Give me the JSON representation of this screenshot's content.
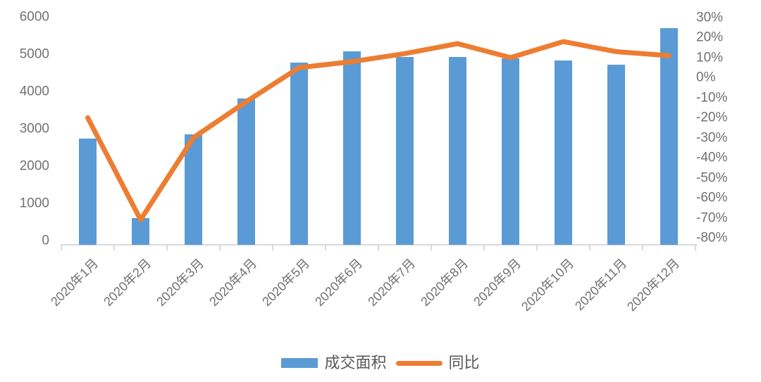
{
  "chart_data": {
    "type": "combo",
    "title": "",
    "categories": [
      "2020年1月",
      "2020年2月",
      "2020年3月",
      "2020年4月",
      "2020年5月",
      "2020年6月",
      "2020年7月",
      "2020年8月",
      "2020年9月",
      "2020年10月",
      "2020年11月",
      "2020年12月"
    ],
    "series": [
      {
        "name": "成交面积",
        "type": "bar",
        "axis": "left",
        "color": "#5B9BD5",
        "values": [
          2800,
          700,
          2900,
          3850,
          4800,
          5100,
          4950,
          4950,
          4900,
          4850,
          4750,
          5700
        ]
      },
      {
        "name": "同比",
        "type": "line",
        "axis": "right",
        "color": "#ED7D31",
        "values": [
          -20,
          -71,
          -30,
          -12,
          5,
          8,
          12,
          17,
          10,
          18,
          13,
          11
        ]
      }
    ],
    "left_axis": {
      "min": 0,
      "max": 6000,
      "step": 1000,
      "tick_labels": [
        "6000",
        "5000",
        "4000",
        "3000",
        "2000",
        "1000",
        "0"
      ]
    },
    "right_axis": {
      "min": -80,
      "max": 30,
      "step": 10,
      "tick_labels": [
        "30%",
        "20%",
        "10%",
        "0%",
        "-10%",
        "-20%",
        "-30%",
        "-40%",
        "-50%",
        "-60%",
        "-70%",
        "-80%"
      ]
    },
    "legend": {
      "position": "bottom",
      "entries": [
        {
          "label": "成交面积",
          "swatch": "bar",
          "color": "#5B9BD5"
        },
        {
          "label": "同比",
          "swatch": "line",
          "color": "#ED7D31"
        }
      ]
    },
    "grid": false
  },
  "style": {
    "background": "#FFFFFF",
    "axis_text_color": "#717171",
    "legend_text_color": "#595959",
    "axis_line_color": "#D9D9D9",
    "bar_color": "#5B9BD5",
    "line_color": "#ED7D31"
  }
}
